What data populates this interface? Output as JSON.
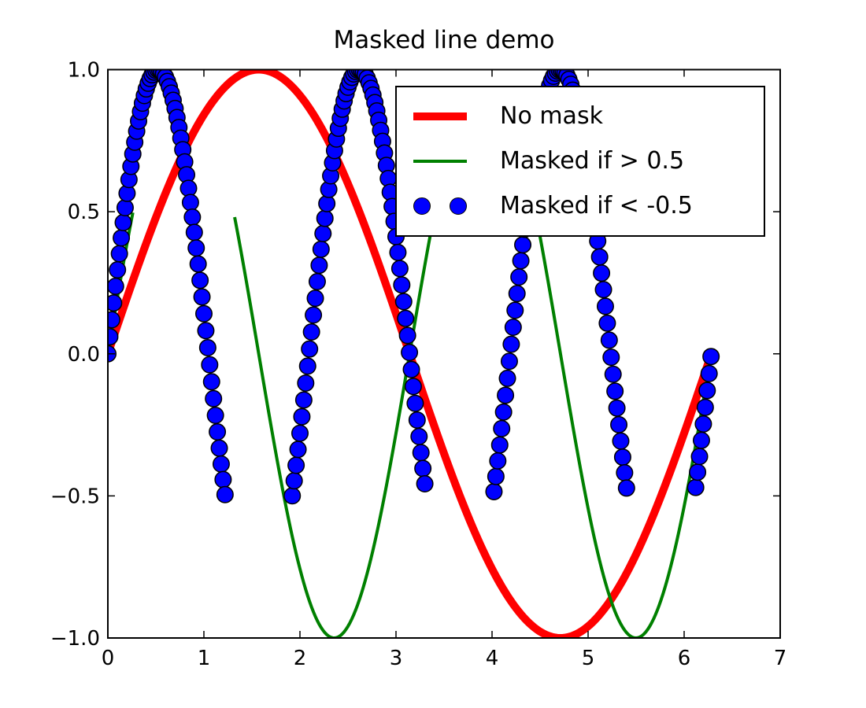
{
  "figure": {
    "background": "#ffffff",
    "axis_color": "#000000"
  },
  "chart_data": {
    "type": "line",
    "title": "Masked line demo",
    "xlabel": "",
    "ylabel": "",
    "xlim": [
      0,
      7
    ],
    "ylim": [
      -1,
      1
    ],
    "grid": false,
    "tick_direction": "in",
    "xticks": {
      "values": [
        0,
        1,
        2,
        3,
        4,
        5,
        6,
        7
      ],
      "labels": [
        "0",
        "1",
        "2",
        "3",
        "4",
        "5",
        "6",
        "7"
      ]
    },
    "yticks": {
      "values": [
        1.0,
        0.5,
        0.0,
        -0.5,
        -1.0
      ],
      "labels": [
        "1.0",
        "0.5",
        "0.0",
        "−0.5",
        "−1.0"
      ]
    },
    "x_domain": {
      "start": 0,
      "stop": 6.283185307179586,
      "step": 0.02
    },
    "series": [
      {
        "name": "no-mask",
        "label": "No mask",
        "color": "#ff0000",
        "style": "line",
        "linewidth": 10,
        "function": "sin",
        "frequency": 1,
        "amplitude": 1,
        "mask": null
      },
      {
        "name": "masked-if-gt",
        "label": "Masked if > 0.5",
        "color": "#008000",
        "style": "line",
        "linewidth": 4,
        "function": "sin",
        "frequency": 2,
        "amplitude": 1,
        "mask": {
          "op": ">",
          "threshold": 0.5
        }
      },
      {
        "name": "masked-if-lt",
        "label": "Masked if < -0.5",
        "color": "#0000ff",
        "style": "marker",
        "markersize": 22,
        "marker_edge_color": "#000000",
        "marker_edge_width": 1.5,
        "function": "sin",
        "frequency": 3,
        "amplitude": 1,
        "mask": {
          "op": "<",
          "threshold": -0.5
        }
      }
    ],
    "legend": {
      "position": "upper right",
      "entries": [
        "No mask",
        "Masked if > 0.5",
        "Masked if < -0.5"
      ]
    }
  }
}
